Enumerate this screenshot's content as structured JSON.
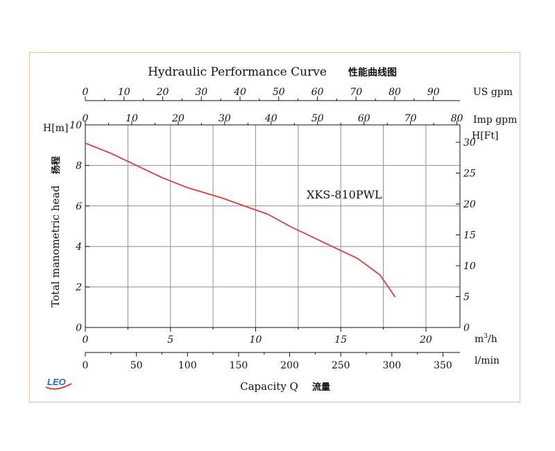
{
  "chart_data": {
    "type": "line",
    "title": "Hydraulic Performance Curve",
    "title_cjk": "性能曲线图",
    "model_label": "XKS-810PWL",
    "xlabel": "Capacity Q",
    "xlabel_cjk": "流量",
    "ylabel": "Total manometric head",
    "ylabel_cjk": "扬程",
    "x_unit": "m3/h",
    "xlim": [
      0,
      22
    ],
    "ylim": [
      0,
      10
    ],
    "grid": true,
    "axes": {
      "us_gpm": {
        "unit_label": "US gpm",
        "ticks": [
          "0",
          "10",
          "20",
          "30",
          "40",
          "50",
          "60",
          "70",
          "80",
          "90"
        ],
        "per_m3h": 4.4029
      },
      "imp_gpm": {
        "unit_label": "Imp gpm",
        "ticks": [
          "0",
          "10",
          "20",
          "30",
          "40",
          "50",
          "60",
          "70",
          "80"
        ],
        "per_m3h": 3.6662
      },
      "m3h": {
        "unit_label_base": "m",
        "unit_label_sup": "3",
        "unit_label_tail": "/h",
        "ticks": [
          "0",
          "5",
          "10",
          "15",
          "20"
        ],
        "per_m3h": 1
      },
      "lmin": {
        "unit_label": "l/min",
        "ticks": [
          "0",
          "50",
          "100",
          "150",
          "200",
          "250",
          "300",
          "350"
        ],
        "per_m3h": 16.6667
      },
      "h_m": {
        "unit_label": "H[m]",
        "ticks": [
          "0",
          "2",
          "4",
          "6",
          "8",
          "10"
        ]
      },
      "h_ft": {
        "unit_label": "H[Ft]",
        "ticks": [
          "0",
          "5",
          "10",
          "15",
          "20",
          "25",
          "30"
        ],
        "per_m": 3.2808
      }
    },
    "series": [
      {
        "name": "XKS-810PWL",
        "color": "#e03c3c",
        "x": [
          0,
          1.5,
          3,
          4.5,
          6,
          8,
          10,
          10.7,
          12,
          14,
          16,
          17.3,
          18.2
        ],
        "y": [
          9.1,
          8.6,
          8.0,
          7.4,
          6.9,
          6.4,
          5.8,
          5.6,
          5.0,
          4.2,
          3.4,
          2.6,
          1.5
        ]
      }
    ]
  },
  "logo": {
    "text": "LEO",
    "color": "#1f6fb7"
  }
}
